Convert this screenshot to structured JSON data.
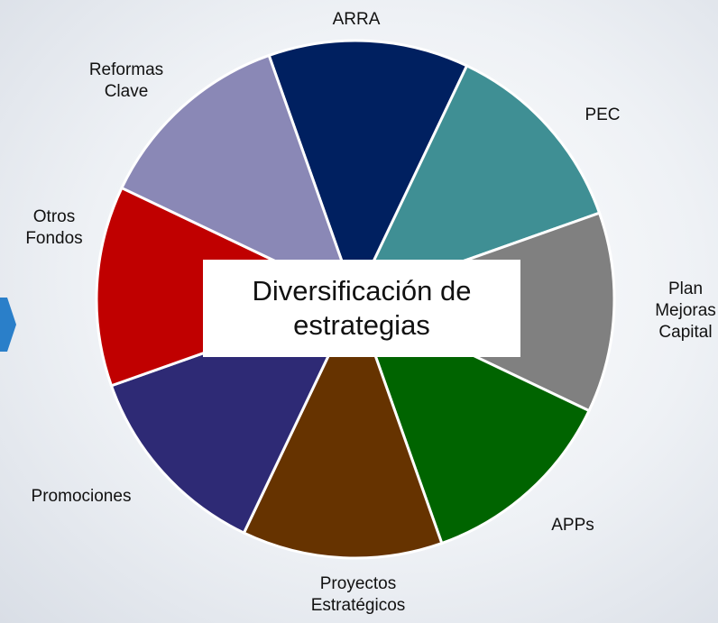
{
  "chart_data": {
    "type": "pie",
    "title": "Diversificación de\nestrategias",
    "categories": [
      "ARRA",
      "PEC",
      "Plan\nMejoras\nCapital",
      "APPs",
      "Proyectos\nEstratégicos",
      "Promociones",
      "Otros\nFondos",
      "Reformas\nClave"
    ],
    "values": [
      12.5,
      12.5,
      12.5,
      12.5,
      12.5,
      12.5,
      12.5,
      12.5
    ],
    "colors": [
      "#002060",
      "#3f8f94",
      "#808080",
      "#006400",
      "#663300",
      "#2e2a75",
      "#c00000",
      "#8a88b6"
    ]
  }
}
